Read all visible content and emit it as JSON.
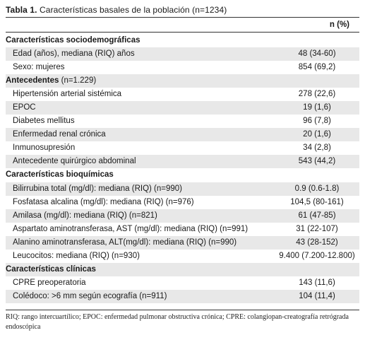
{
  "table": {
    "title_bold": "Tabla 1.",
    "title_text": " Características basales de la población (n=1234)",
    "column_header": "n (%)",
    "rows": [
      {
        "type": "section",
        "label": "Características sociodemográficas",
        "sub": "",
        "value": ""
      },
      {
        "type": "item",
        "label": "Edad (años), mediana (RIQ) años",
        "value": "48 (34-60)"
      },
      {
        "type": "item",
        "label": "Sexo: mujeres",
        "value": "854 (69,2)"
      },
      {
        "type": "section",
        "label": "Antecedentes",
        "sub": " (n=1.229)",
        "value": ""
      },
      {
        "type": "item",
        "label": "Hipertensión arterial sistémica",
        "value": "278 (22,6)"
      },
      {
        "type": "item",
        "label": "EPOC",
        "value": "19 (1,6)"
      },
      {
        "type": "item",
        "label": "Diabetes mellitus",
        "value": "96 (7,8)"
      },
      {
        "type": "item",
        "label": "Enfermedad renal crónica",
        "value": "20 (1,6)"
      },
      {
        "type": "item",
        "label": "Inmunosupresión",
        "value": "34 (2,8)"
      },
      {
        "type": "item",
        "label": "Antecedente quirúrgico abdominal",
        "value": "543 (44,2)"
      },
      {
        "type": "section",
        "label": "Características bioquímicas",
        "sub": "",
        "value": ""
      },
      {
        "type": "item",
        "label": "Bilirrubina total (mg/dl): mediana (RIQ) (n=990)",
        "value": "0.9 (0.6-1.8)"
      },
      {
        "type": "item",
        "label": "Fosfatasa alcalina (mg/dl): mediana (RIQ) (n=976)",
        "value": "104,5 (80-161)"
      },
      {
        "type": "item",
        "label": "Amilasa (mg/dl): mediana (RIQ) (n=821)",
        "value": "61 (47-85)"
      },
      {
        "type": "item",
        "label": "Aspartato aminotransferasa, AST (mg/dl): mediana (RIQ) (n=991)",
        "value": "31 (22-107)"
      },
      {
        "type": "item",
        "label": "Alanino aminotransferasa, ALT(mg/dl): mediana (RIQ) (n=990)",
        "value": "43 (28-152)"
      },
      {
        "type": "item",
        "label": "Leucocitos: mediana (RIQ) (n=930)",
        "value": "9.400 (7.200-12.800)"
      },
      {
        "type": "section",
        "label": "Características clínicas",
        "sub": "",
        "value": ""
      },
      {
        "type": "item",
        "label": "CPRE preoperatoria",
        "value": "143 (11,6)"
      },
      {
        "type": "item",
        "label": "Colédoco: >6 mm según ecografía (n=911)",
        "value": "104 (11,4)"
      }
    ],
    "footnote": "RIQ: rango intercuartílico; EPOC: enfermedad pulmonar obstructiva crónica; CPRE: colangiopan-creatografía retrógrada endoscópica",
    "colors": {
      "stripe": "#e8e8e8",
      "rule": "#333333"
    }
  }
}
